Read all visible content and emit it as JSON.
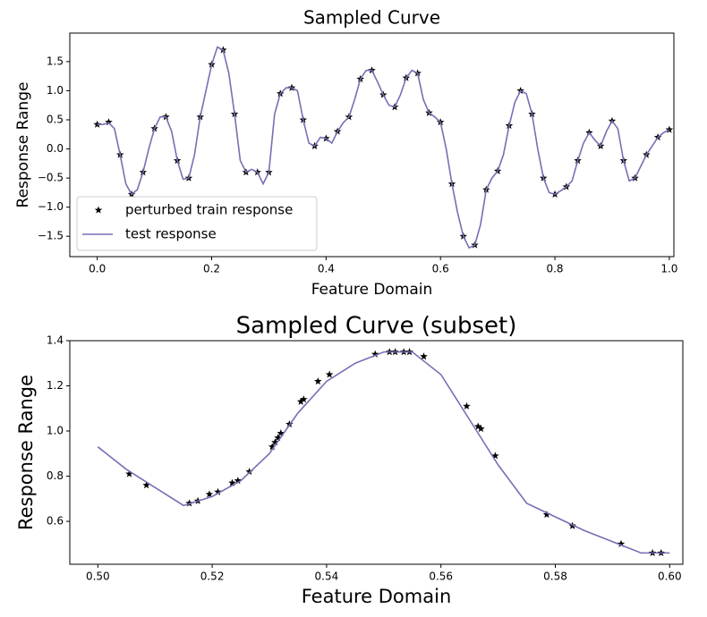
{
  "chart_data": [
    {
      "type": "line",
      "title": "Sampled Curve",
      "xlabel": "Feature Domain",
      "ylabel": "Response Range",
      "xlim": [
        -0.048,
        1.008
      ],
      "ylim": [
        -1.85,
        1.99
      ],
      "xticks": [
        {
          "value": 0,
          "label": "0.0"
        },
        0.2,
        0.4,
        0.6,
        0.8,
        {
          "value": 1,
          "label": "1.0"
        }
      ],
      "yticks": [
        {
          "value": -1.5,
          "label": "−1.5"
        },
        {
          "value": -1,
          "label": "−1.0"
        },
        {
          "value": -0.5,
          "label": "−0.5"
        },
        {
          "value": 0,
          "label": "0.0"
        },
        0.5,
        {
          "value": 1,
          "label": "1.0"
        },
        1.5
      ],
      "legend": "lower left",
      "series": [
        {
          "name": "perturbed train response",
          "color": "#000000",
          "mode": "markers",
          "x": [
            0,
            0.02,
            0.04,
            0.06,
            0.08,
            0.1,
            0.12,
            0.14,
            0.16,
            0.18,
            0.2,
            0.22,
            0.24,
            0.26,
            0.28,
            0.3,
            0.32,
            0.34,
            0.36,
            0.38,
            0.4,
            0.42,
            0.44,
            0.46,
            0.48,
            0.5,
            0.52,
            0.54,
            0.56,
            0.58,
            0.6,
            0.62,
            0.64,
            0.66,
            0.68,
            0.7,
            0.72,
            0.74,
            0.76,
            0.78,
            0.8,
            0.82,
            0.84,
            0.86,
            0.88,
            0.9,
            0.92,
            0.94,
            0.96,
            0.98,
            1.0
          ],
          "values": [
            0.42,
            0.46,
            -0.1,
            -0.78,
            -0.4,
            0.35,
            0.55,
            -0.2,
            -0.5,
            0.55,
            1.45,
            1.7,
            0.6,
            -0.4,
            -0.4,
            -0.4,
            0.95,
            1.05,
            0.5,
            0.05,
            0.18,
            0.3,
            0.55,
            1.2,
            1.35,
            0.93,
            0.72,
            1.22,
            1.3,
            0.62,
            0.46,
            -0.6,
            -1.5,
            -1.65,
            -0.7,
            -0.38,
            0.4,
            1.0,
            0.6,
            -0.5,
            -0.78,
            -0.65,
            -0.2,
            0.28,
            0.05,
            0.48,
            -0.2,
            -0.5,
            -0.1,
            0.2,
            0.33
          ]
        },
        {
          "name": "test response",
          "color": "#7570b3",
          "mode": "line",
          "x": [
            0,
            0.01,
            0.02,
            0.03,
            0.04,
            0.05,
            0.06,
            0.07,
            0.08,
            0.09,
            0.1,
            0.11,
            0.12,
            0.13,
            0.14,
            0.15,
            0.16,
            0.17,
            0.18,
            0.19,
            0.2,
            0.21,
            0.22,
            0.23,
            0.24,
            0.25,
            0.26,
            0.27,
            0.28,
            0.29,
            0.3,
            0.31,
            0.32,
            0.33,
            0.34,
            0.35,
            0.36,
            0.37,
            0.38,
            0.39,
            0.4,
            0.41,
            0.42,
            0.43,
            0.44,
            0.45,
            0.46,
            0.47,
            0.48,
            0.49,
            0.5,
            0.51,
            0.52,
            0.53,
            0.54,
            0.55,
            0.56,
            0.57,
            0.58,
            0.59,
            0.6,
            0.61,
            0.62,
            0.63,
            0.64,
            0.65,
            0.66,
            0.67,
            0.68,
            0.69,
            0.7,
            0.71,
            0.72,
            0.73,
            0.74,
            0.75,
            0.76,
            0.77,
            0.78,
            0.79,
            0.8,
            0.81,
            0.82,
            0.83,
            0.84,
            0.85,
            0.86,
            0.87,
            0.88,
            0.89,
            0.9,
            0.91,
            0.92,
            0.93,
            0.94,
            0.95,
            0.96,
            0.97,
            0.98,
            0.99,
            1.0
          ],
          "values": [
            0.42,
            0.42,
            0.45,
            0.35,
            -0.1,
            -0.6,
            -0.78,
            -0.7,
            -0.4,
            0.0,
            0.35,
            0.55,
            0.55,
            0.3,
            -0.2,
            -0.52,
            -0.5,
            -0.1,
            0.55,
            1.0,
            1.45,
            1.75,
            1.7,
            1.3,
            0.6,
            -0.2,
            -0.4,
            -0.35,
            -0.4,
            -0.6,
            -0.4,
            0.6,
            0.95,
            1.05,
            1.05,
            1.0,
            0.5,
            0.1,
            0.05,
            0.2,
            0.18,
            0.1,
            0.3,
            0.45,
            0.55,
            0.85,
            1.2,
            1.35,
            1.35,
            1.15,
            0.93,
            0.75,
            0.72,
            0.93,
            1.22,
            1.35,
            1.3,
            0.85,
            0.62,
            0.55,
            0.46,
            0.0,
            -0.6,
            -1.1,
            -1.5,
            -1.7,
            -1.65,
            -1.3,
            -0.7,
            -0.5,
            -0.38,
            -0.1,
            0.4,
            0.8,
            1.0,
            0.95,
            0.6,
            0.0,
            -0.5,
            -0.75,
            -0.78,
            -0.72,
            -0.65,
            -0.55,
            -0.2,
            0.1,
            0.28,
            0.15,
            0.05,
            0.3,
            0.48,
            0.35,
            -0.2,
            -0.55,
            -0.5,
            -0.3,
            -0.1,
            0.05,
            0.2,
            0.28,
            0.33
          ]
        }
      ]
    },
    {
      "type": "line",
      "title": "Sampled Curve (subset)",
      "xlabel": "Feature Domain",
      "ylabel": "Response Range",
      "xlim": [
        0.4951,
        0.6023
      ],
      "ylim": [
        0.41,
        1.4
      ],
      "xticks": [
        {
          "value": 0.5,
          "label": "0.50"
        },
        0.52,
        0.54,
        0.56,
        0.58,
        {
          "value": 0.6,
          "label": "0.60"
        }
      ],
      "yticks": [
        0.6,
        0.8,
        {
          "value": 1,
          "label": "1.0"
        },
        1.2,
        1.4
      ],
      "series": [
        {
          "color": "#000000",
          "mode": "markers",
          "x": [
            0.5055,
            0.5085,
            0.516,
            0.5175,
            0.5195,
            0.521,
            0.5235,
            0.5245,
            0.5265,
            0.5305,
            0.531,
            0.5315,
            0.532,
            0.5335,
            0.5355,
            0.536,
            0.5385,
            0.5405,
            0.5485,
            0.551,
            0.552,
            0.5535,
            0.5545,
            0.557,
            0.5645,
            0.5665,
            0.567,
            0.5695,
            0.5785,
            0.583,
            0.5915,
            0.597,
            0.5985
          ],
          "values": [
            0.81,
            0.76,
            0.68,
            0.69,
            0.72,
            0.73,
            0.77,
            0.78,
            0.82,
            0.93,
            0.95,
            0.97,
            0.99,
            1.03,
            1.13,
            1.14,
            1.22,
            1.25,
            1.34,
            1.35,
            1.35,
            1.35,
            1.35,
            1.33,
            1.11,
            1.02,
            1.01,
            0.89,
            0.63,
            0.58,
            0.5,
            0.46,
            0.46
          ]
        },
        {
          "color": "#7570b3",
          "mode": "line",
          "x": [
            0.5,
            0.505,
            0.51,
            0.515,
            0.52,
            0.525,
            0.53,
            0.535,
            0.54,
            0.545,
            0.55,
            0.555,
            0.56,
            0.565,
            0.57,
            0.575,
            0.58,
            0.585,
            0.59,
            0.595,
            0.6
          ],
          "values": [
            0.93,
            0.83,
            0.75,
            0.67,
            0.71,
            0.78,
            0.9,
            1.08,
            1.22,
            1.3,
            1.35,
            1.35,
            1.25,
            1.05,
            0.85,
            0.68,
            0.62,
            0.56,
            0.51,
            0.46,
            0.46
          ]
        }
      ]
    }
  ]
}
